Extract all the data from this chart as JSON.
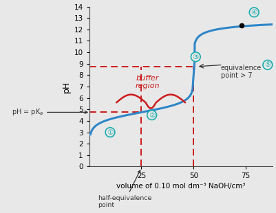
{
  "title": "",
  "xlabel": "volume of 0.10 mol dm⁻³ NaOH/cm³",
  "ylabel": "pH",
  "xlim": [
    0,
    88
  ],
  "ylim": [
    0,
    14
  ],
  "xticks": [
    25,
    50,
    75
  ],
  "yticks": [
    0,
    1,
    2,
    3,
    4,
    5,
    6,
    7,
    8,
    9,
    10,
    11,
    12,
    13,
    14
  ],
  "curve_color": "#2e86c8",
  "red_color": "#cc1a1a",
  "teal_color": "#1aadad",
  "pKa": 4.75,
  "equiv_vol": 50,
  "equiv_pH": 8.75,
  "half_equiv_vol": 25,
  "dot_vol": 73,
  "dot_pH": 12.35,
  "background_color": "#e8e8e8"
}
